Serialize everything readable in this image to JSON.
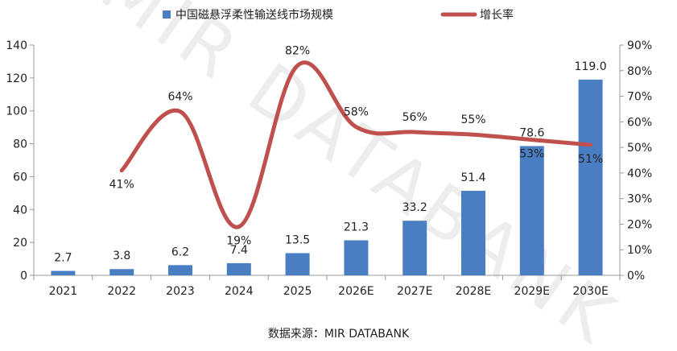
{
  "chart_data": {
    "type": "bar+line",
    "categories": [
      "2021",
      "2022",
      "2023",
      "2024",
      "2025",
      "2026E",
      "2027E",
      "2028E",
      "2029E",
      "2030E"
    ],
    "series": [
      {
        "name": "中国磁悬浮柔性输送线市场规模",
        "type": "bar",
        "axis": "left",
        "values": [
          2.7,
          3.8,
          6.2,
          7.4,
          13.5,
          21.3,
          33.2,
          51.4,
          78.6,
          119.0
        ],
        "labels": [
          "2.7",
          "3.8",
          "6.2",
          "7.4",
          "13.5",
          "21.3",
          "33.2",
          "51.4",
          "78.6",
          "119.0"
        ],
        "color": "#4a7ec2"
      },
      {
        "name": "增长率",
        "type": "line",
        "axis": "right",
        "values": [
          null,
          41,
          64,
          19,
          82,
          58,
          56,
          55,
          53,
          51
        ],
        "labels": [
          "",
          "41%",
          "64%",
          "19%",
          "82%",
          "58%",
          "56%",
          "55%",
          "53%",
          "51%"
        ],
        "color": "#c0504d"
      }
    ],
    "y_left": {
      "lim": [
        0,
        140
      ],
      "ticks": [
        "0",
        "20",
        "40",
        "60",
        "80",
        "100",
        "120",
        "140"
      ]
    },
    "y_right": {
      "lim": [
        0,
        90
      ],
      "ticks": [
        "0%",
        "10%",
        "20%",
        "30%",
        "40%",
        "50%",
        "60%",
        "70%",
        "80%",
        "90%"
      ]
    },
    "legend": "top-center",
    "grid": false
  },
  "source_text": "数据来源：MIR DATABANK",
  "watermark": "MIR DATABANK"
}
